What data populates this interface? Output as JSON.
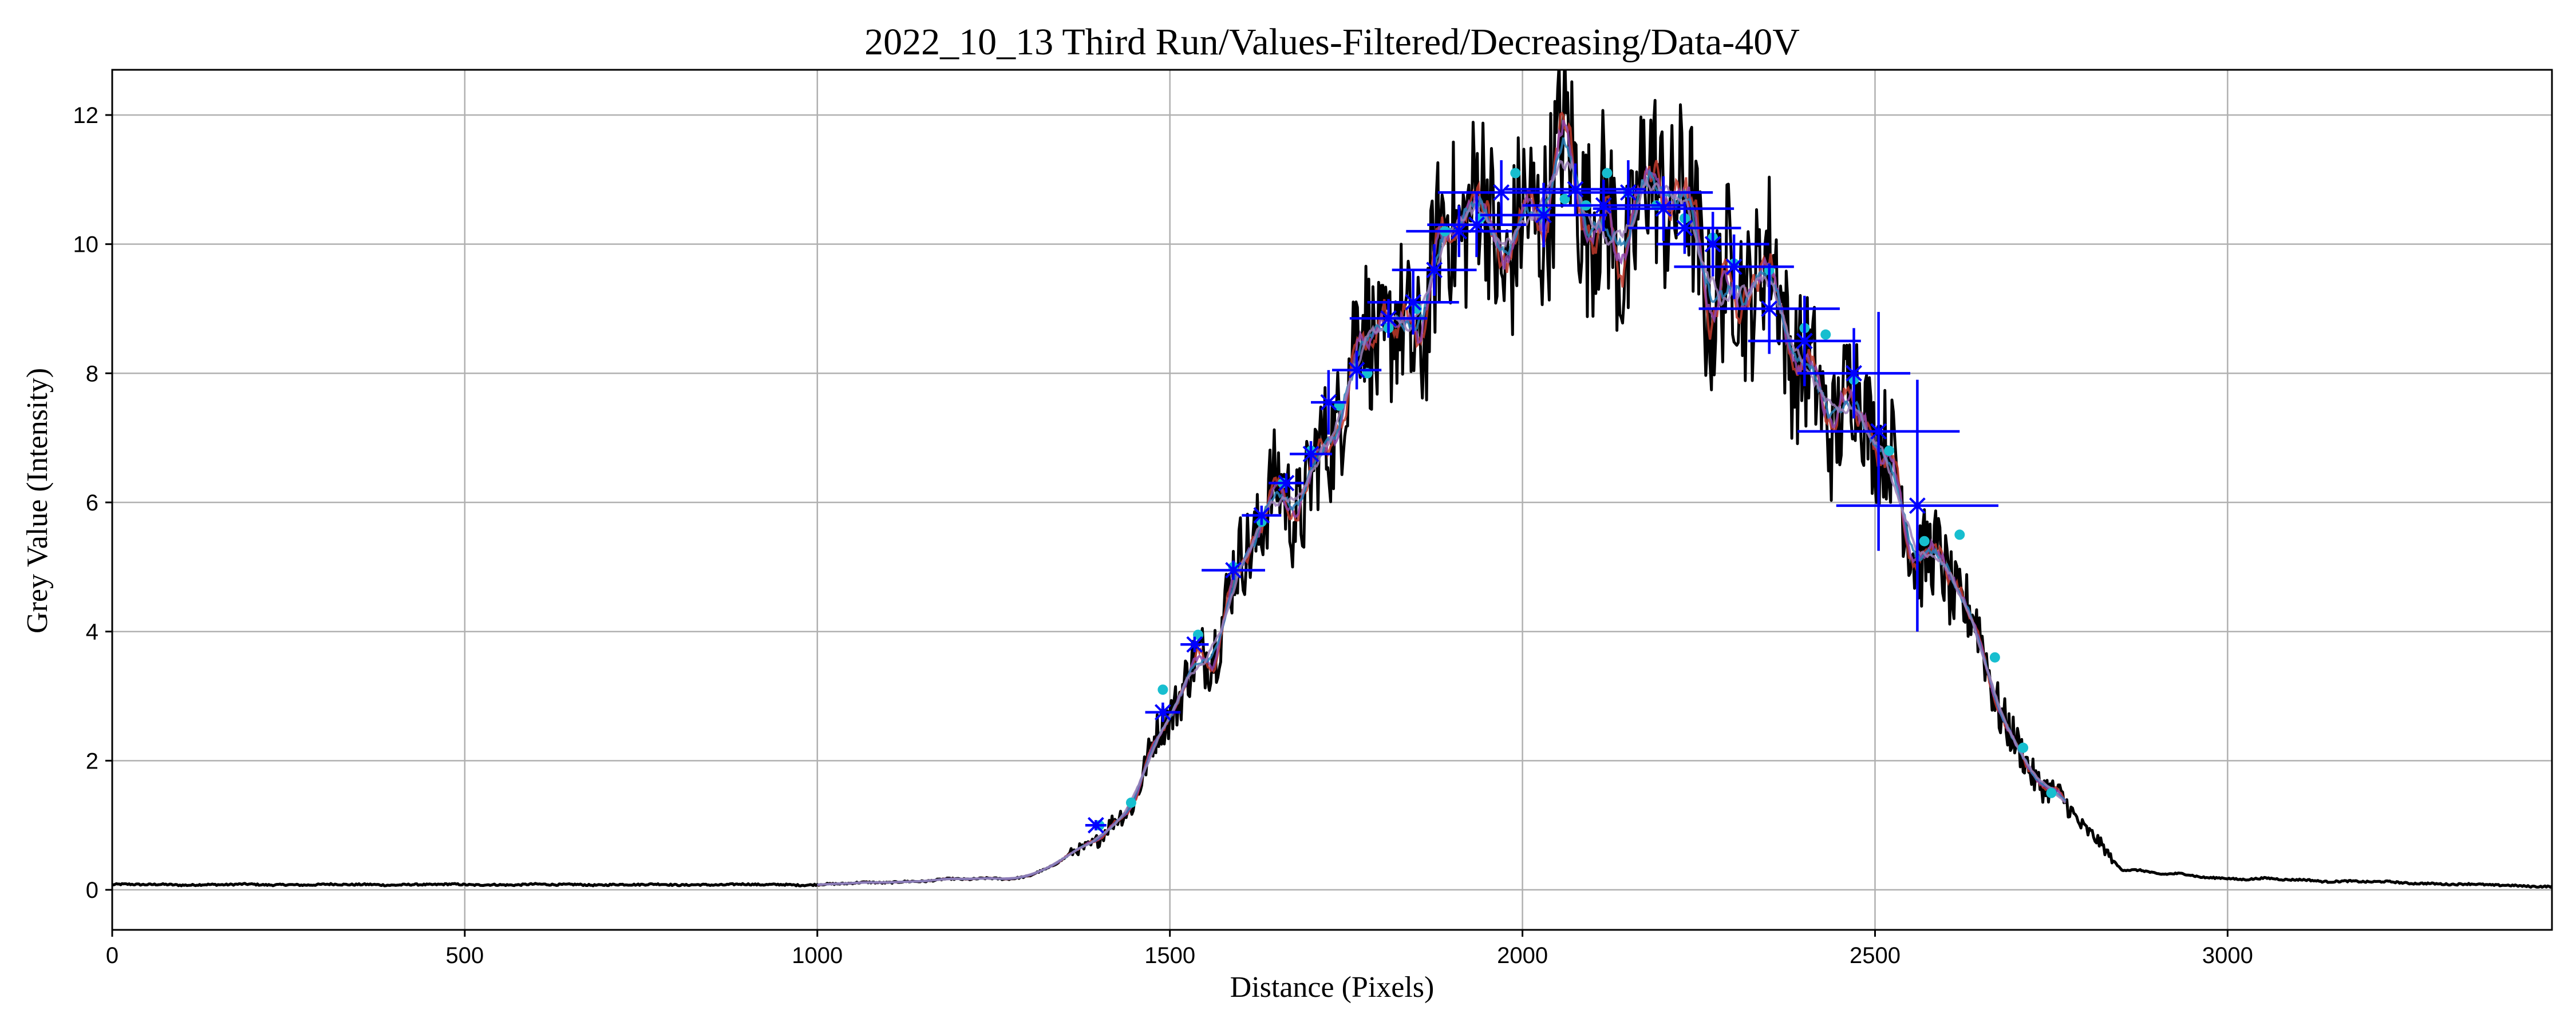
{
  "chart_data": {
    "type": "line",
    "title": "2022_10_13 Third Run/Values-Filtered/Decreasing/Data-40V",
    "xlabel": "Distance (Pixels)",
    "ylabel": "Grey Value (Intensity)",
    "xlim": [
      0,
      3460
    ],
    "ylim": [
      -0.62,
      12.7
    ],
    "xticks": [
      0,
      500,
      1000,
      1500,
      2000,
      2500,
      3000
    ],
    "yticks": [
      0,
      2,
      4,
      6,
      8,
      10,
      12
    ],
    "grid": true,
    "series": [
      {
        "type": "noisy-line",
        "color": "#000000",
        "x_range": [
          0,
          3460
        ],
        "envelope": {
          "x": [
            0,
            1000,
            1300,
            1350,
            1400,
            1450,
            1500,
            1550,
            1600,
            1650,
            1700,
            1750,
            1800,
            1850,
            1900,
            1950,
            2000,
            2050,
            2100,
            2150,
            2200,
            2250,
            2300,
            2350,
            2400,
            2450,
            2500,
            2550,
            2600,
            2650,
            2700,
            2750,
            2800,
            2850,
            2900,
            3000,
            3460
          ],
          "y": [
            0.08,
            0.08,
            0.2,
            0.45,
            0.85,
            1.4,
            2.7,
            3.9,
            4.9,
            5.9,
            6.6,
            7.7,
            8.5,
            9.2,
            9.9,
            10.3,
            10.6,
            10.6,
            10.7,
            10.6,
            10.4,
            10.1,
            9.6,
            9.0,
            8.3,
            7.6,
            6.9,
            5.9,
            4.9,
            3.6,
            2.3,
            1.5,
            0.9,
            0.35,
            0.25,
            0.18,
            0.05
          ]
        }
      },
      {
        "type": "smoothed-lines",
        "colors": [
          "#c0392b",
          "#8e44ad",
          "#2980b9",
          "#9b7fb8"
        ],
        "x_range": [
          1000,
          2770
        ]
      },
      {
        "type": "markers",
        "color": "#17becf",
        "points": [
          [
            1400,
            1.0
          ],
          [
            1445,
            1.35
          ],
          [
            1490,
            3.1
          ],
          [
            1540,
            3.95
          ],
          [
            1590,
            5.0
          ],
          [
            1630,
            5.7
          ],
          [
            1660,
            6.3
          ],
          [
            1700,
            6.8
          ],
          [
            1740,
            7.5
          ],
          [
            1780,
            8.0
          ],
          [
            1810,
            8.7
          ],
          [
            1850,
            9.0
          ],
          [
            1890,
            10.2
          ],
          [
            1940,
            10.4
          ],
          [
            1990,
            11.1
          ],
          [
            2030,
            10.5
          ],
          [
            2060,
            10.7
          ],
          [
            2090,
            10.6
          ],
          [
            2120,
            11.1
          ],
          [
            2150,
            10.8
          ],
          [
            2190,
            10.6
          ],
          [
            2230,
            10.4
          ],
          [
            2270,
            10.1
          ],
          [
            2300,
            9.7
          ],
          [
            2350,
            9.6
          ],
          [
            2400,
            8.7
          ],
          [
            2430,
            8.6
          ],
          [
            2470,
            7.9
          ],
          [
            2520,
            6.8
          ],
          [
            2570,
            5.4
          ],
          [
            2620,
            5.5
          ],
          [
            2670,
            3.6
          ],
          [
            2710,
            2.2
          ],
          [
            2750,
            1.5
          ]
        ]
      },
      {
        "type": "errorbars",
        "color": "#0000ff",
        "points": [
          {
            "x": 1395,
            "y": 1.0,
            "xerr": 15,
            "yerr": 0.08
          },
          {
            "x": 1490,
            "y": 2.75,
            "xerr": 25,
            "yerr": 0.15
          },
          {
            "x": 1535,
            "y": 3.8,
            "xerr": 20,
            "yerr": 0.12
          },
          {
            "x": 1590,
            "y": 4.95,
            "xerr": 45,
            "yerr": 0.15
          },
          {
            "x": 1630,
            "y": 5.8,
            "xerr": 28,
            "yerr": 0.15
          },
          {
            "x": 1665,
            "y": 6.3,
            "xerr": 25,
            "yerr": 0.15
          },
          {
            "x": 1700,
            "y": 6.75,
            "xerr": 30,
            "yerr": 0.2
          },
          {
            "x": 1725,
            "y": 7.55,
            "xerr": 25,
            "yerr": 0.5
          },
          {
            "x": 1765,
            "y": 8.05,
            "xerr": 35,
            "yerr": 0.3
          },
          {
            "x": 1810,
            "y": 8.85,
            "xerr": 55,
            "yerr": 0.3
          },
          {
            "x": 1845,
            "y": 9.1,
            "xerr": 65,
            "yerr": 0.5
          },
          {
            "x": 1875,
            "y": 9.6,
            "xerr": 60,
            "yerr": 0.4
          },
          {
            "x": 1910,
            "y": 10.2,
            "xerr": 75,
            "yerr": 0.4
          },
          {
            "x": 1935,
            "y": 10.3,
            "xerr": 70,
            "yerr": 0.5
          },
          {
            "x": 1970,
            "y": 10.8,
            "xerr": 90,
            "yerr": 0.5
          },
          {
            "x": 2030,
            "y": 10.45,
            "xerr": 90,
            "yerr": 0.5
          },
          {
            "x": 2075,
            "y": 10.85,
            "xerr": 100,
            "yerr": 0.4
          },
          {
            "x": 2115,
            "y": 10.6,
            "xerr": 115,
            "yerr": 0.4
          },
          {
            "x": 2150,
            "y": 10.8,
            "xerr": 120,
            "yerr": 0.5
          },
          {
            "x": 2200,
            "y": 10.55,
            "xerr": 100,
            "yerr": 0.5
          },
          {
            "x": 2230,
            "y": 10.25,
            "xerr": 80,
            "yerr": 0.4
          },
          {
            "x": 2270,
            "y": 10.0,
            "xerr": 80,
            "yerr": 0.5
          },
          {
            "x": 2300,
            "y": 9.65,
            "xerr": 85,
            "yerr": 0.5
          },
          {
            "x": 2350,
            "y": 9.0,
            "xerr": 100,
            "yerr": 0.7
          },
          {
            "x": 2400,
            "y": 8.5,
            "xerr": 80,
            "yerr": 0.7
          },
          {
            "x": 2470,
            "y": 8.0,
            "xerr": 80,
            "yerr": 0.7
          },
          {
            "x": 2505,
            "y": 7.1,
            "xerr": 115,
            "yerr": 1.85
          },
          {
            "x": 2560,
            "y": 5.95,
            "xerr": 115,
            "yerr": 1.95
          }
        ]
      }
    ]
  }
}
